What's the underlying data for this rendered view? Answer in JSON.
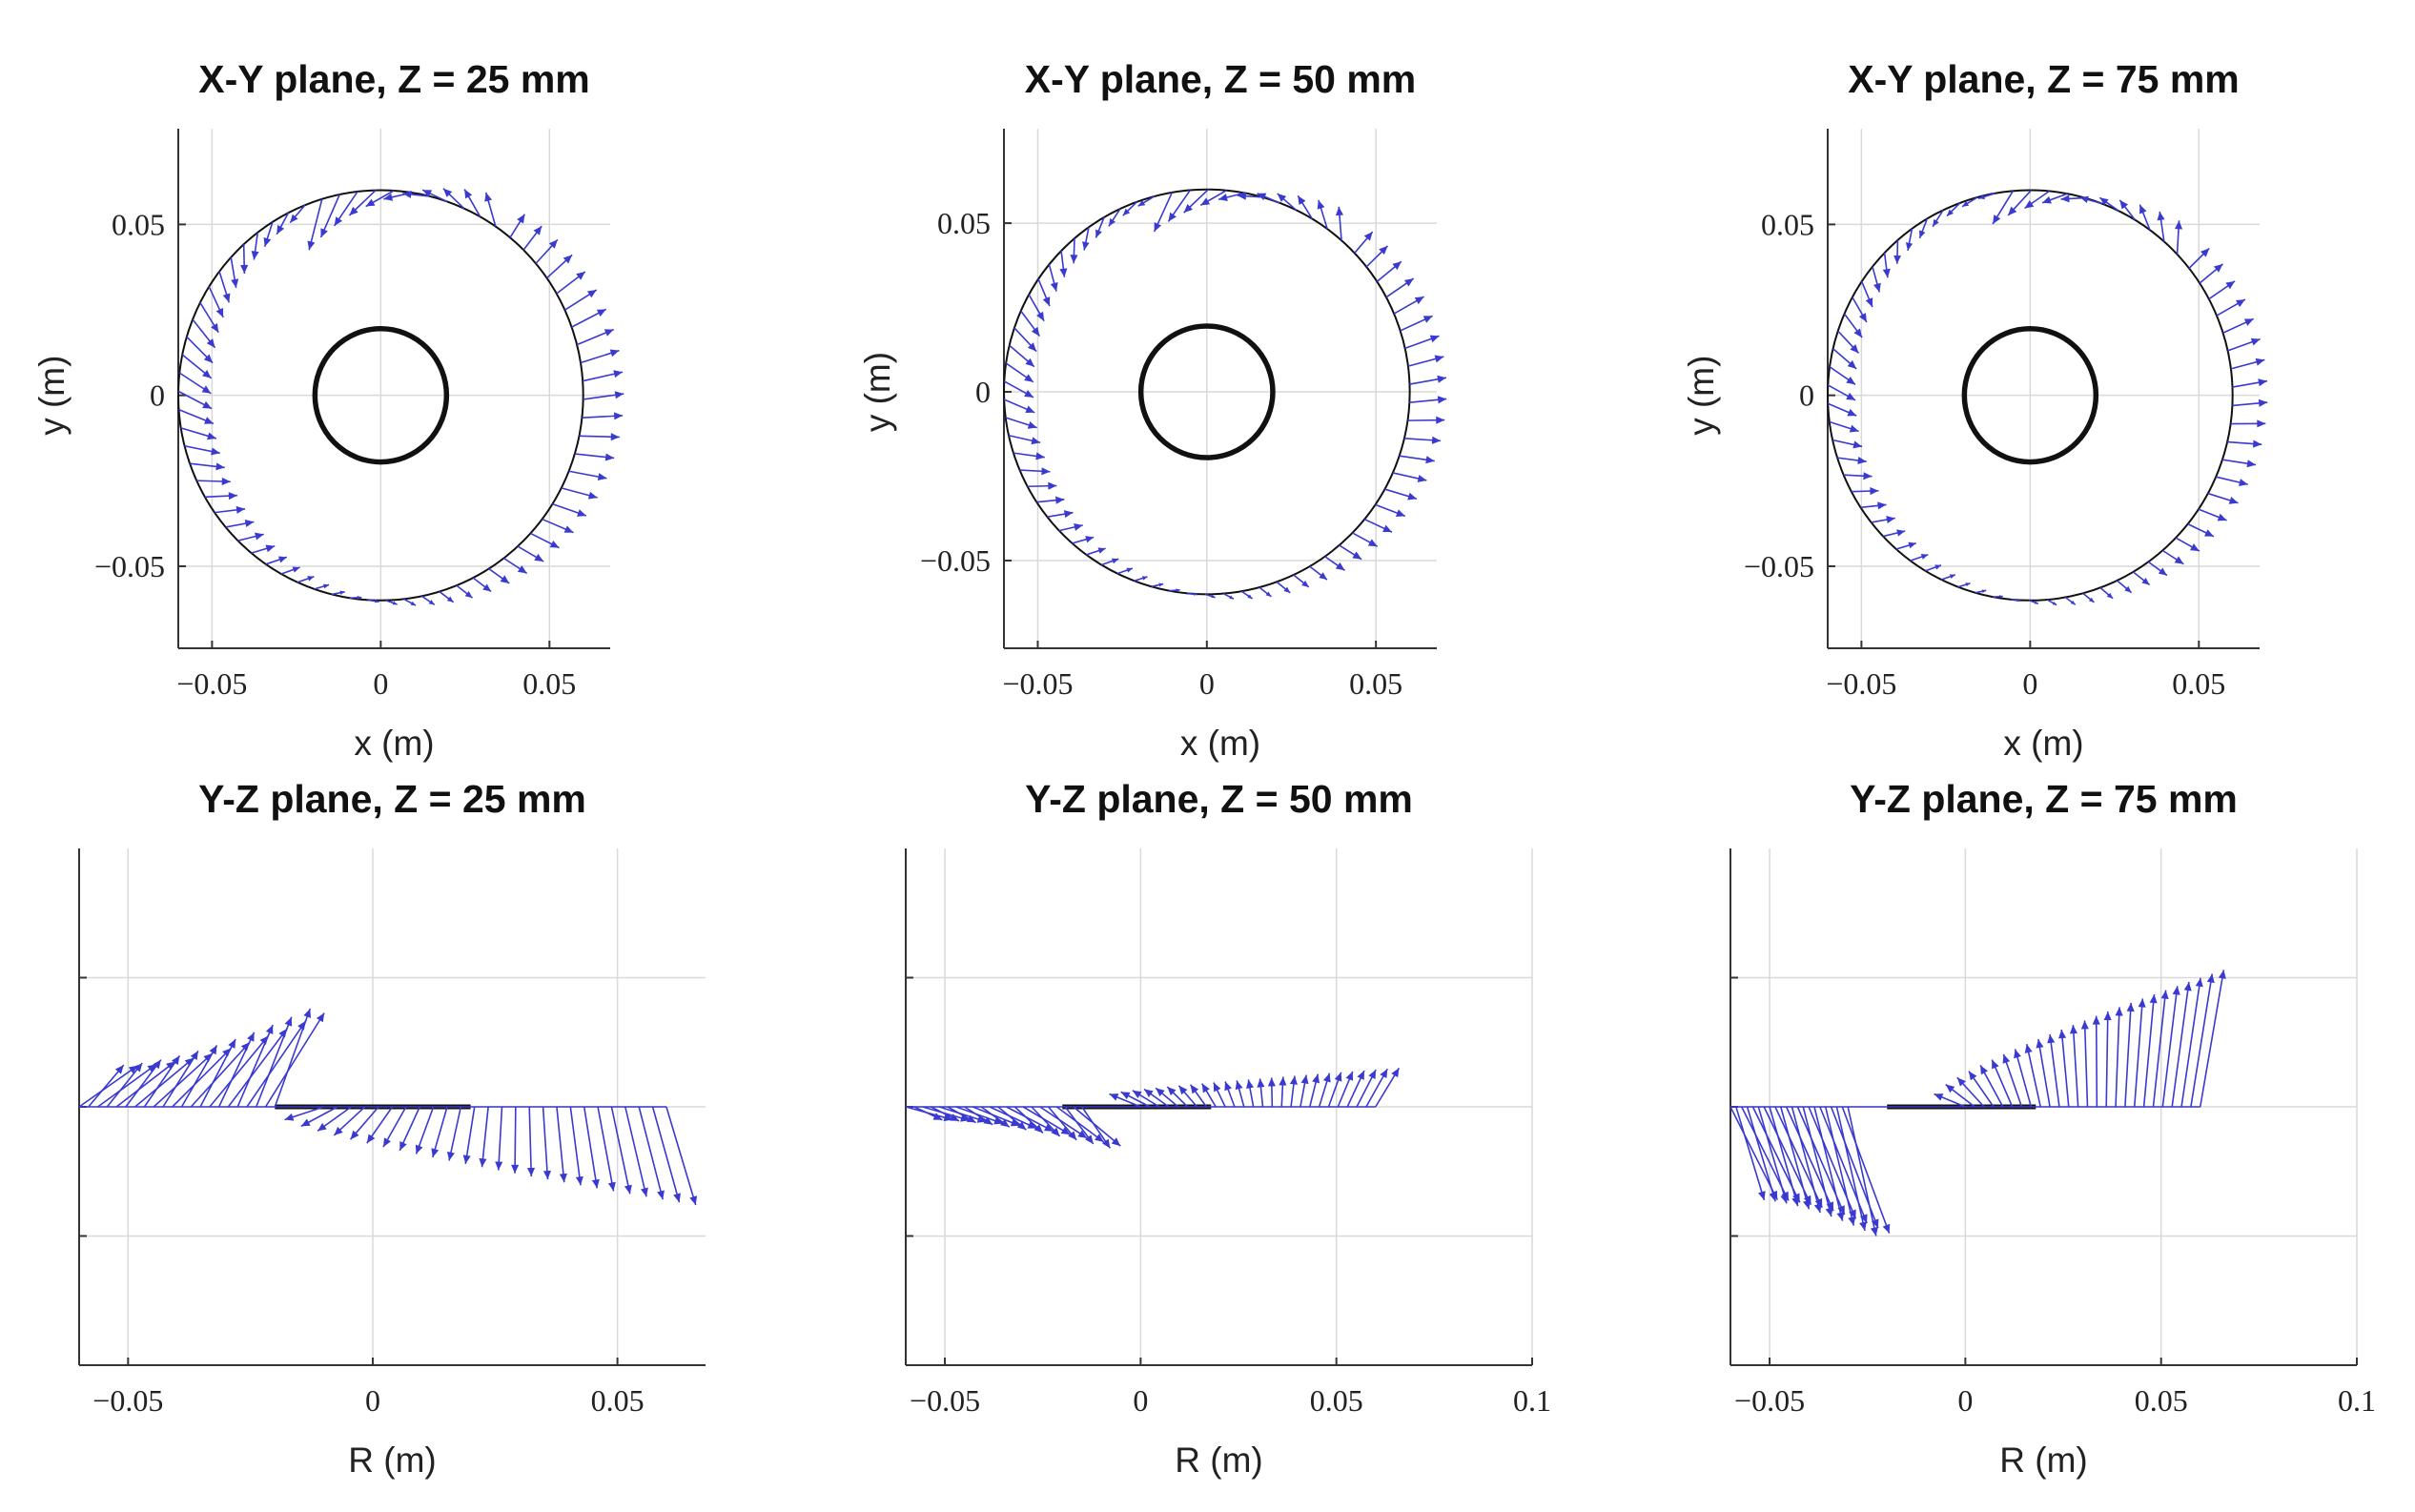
{
  "chart_data": [
    {
      "type": "quiver",
      "title": "X-Y plane, Z = 25 mm",
      "xlabel": "x (m)",
      "ylabel": "y (m)",
      "xlim": [
        -0.06,
        0.068
      ],
      "ylim": [
        -0.074,
        0.078
      ],
      "xticks": [
        -0.05,
        0,
        0.05
      ],
      "xticklabels": [
        "−0.05",
        "0",
        "0.05"
      ],
      "yticks": [
        -0.05,
        0,
        0.05
      ],
      "yticklabels": [
        "−0.05",
        "0",
        "0.05"
      ],
      "grid": true,
      "circles": [
        {
          "center": [
            0,
            0
          ],
          "r": 0.06,
          "style": "thin"
        },
        {
          "center": [
            0,
            0
          ],
          "r": 0.0195,
          "style": "thick"
        }
      ],
      "field": {
        "kind": "ring",
        "cusp_angle_deg": 112,
        "outward_side": "right",
        "strength": 1.0
      }
    },
    {
      "type": "quiver",
      "title": "X-Y plane, Z = 50 mm",
      "xlabel": "x (m)",
      "ylabel": "y (m)",
      "xlim": [
        -0.06,
        0.068
      ],
      "ylim": [
        -0.076,
        0.078
      ],
      "xticks": [
        -0.05,
        0,
        0.05
      ],
      "xticklabels": [
        "−0.05",
        "0",
        "0.05"
      ],
      "yticks": [
        -0.05,
        0,
        0.05
      ],
      "yticklabels": [
        "−0.05",
        "0",
        "0.05"
      ],
      "grid": true,
      "circles": [
        {
          "center": [
            0,
            0
          ],
          "r": 0.06,
          "style": "thin"
        },
        {
          "center": [
            0,
            0
          ],
          "r": 0.0195,
          "style": "thick"
        }
      ],
      "field": {
        "kind": "ring",
        "cusp_angle_deg": 105,
        "outward_side": "right",
        "strength": 0.9
      }
    },
    {
      "type": "quiver",
      "title": "X-Y plane, Z = 75 mm",
      "xlabel": "x (m)",
      "ylabel": "y (m)",
      "xlim": [
        -0.06,
        0.068
      ],
      "ylim": [
        -0.074,
        0.078
      ],
      "xticks": [
        -0.05,
        0,
        0.05
      ],
      "xticklabels": [
        "−0.05",
        "0",
        "0.05"
      ],
      "yticks": [
        -0.05,
        0,
        0.05
      ],
      "yticklabels": [
        "−0.05",
        "0",
        "0.05"
      ],
      "grid": true,
      "circles": [
        {
          "center": [
            0,
            0
          ],
          "r": 0.06,
          "style": "thin"
        },
        {
          "center": [
            0,
            0
          ],
          "r": 0.0195,
          "style": "thick"
        }
      ],
      "field": {
        "kind": "ring",
        "cusp_angle_deg": 100,
        "outward_side": "right",
        "strength": 0.85
      }
    },
    {
      "type": "quiver",
      "title": "Y-Z plane, Z = 25 mm",
      "xlabel": "R (m)",
      "ylabel": "",
      "xlim": [
        -0.06,
        0.068
      ],
      "ylim": [
        -1,
        1
      ],
      "xticks": [
        -0.05,
        0,
        0.05
      ],
      "xticklabels": [
        "−0.05",
        "0",
        "0.05"
      ],
      "yticks": [
        -0.5,
        0,
        0.5
      ],
      "yticklabels": [
        "",
        "",
        ""
      ],
      "grid": true,
      "inner_bar": [
        -0.02,
        0.02
      ],
      "field": {
        "kind": "line",
        "left": {
          "direction": "up",
          "peak_x": -0.02,
          "peak": 0.38,
          "edge": 0.16
        },
        "right": {
          "direction": "down",
          "start_x": -0.01,
          "edge": 0.33
        }
      }
    },
    {
      "type": "quiver",
      "title": "Y-Z plane, Z = 50 mm",
      "xlabel": "R (m)",
      "ylabel": "",
      "xlim": [
        -0.06,
        0.1
      ],
      "ylim": [
        -1,
        1
      ],
      "xticks": [
        -0.05,
        0,
        0.05,
        0.1
      ],
      "xticklabels": [
        "−0.05",
        "0",
        "0.05",
        "0.1"
      ],
      "yticks": [
        -0.5,
        0,
        0.5
      ],
      "yticklabels": [
        "",
        "",
        ""
      ],
      "grid": true,
      "inner_bar": [
        -0.02,
        0.018
      ],
      "field": {
        "kind": "line",
        "left": {
          "direction": "down",
          "peak_x": -0.015,
          "peak": 0.16,
          "edge": 0.05
        },
        "right": {
          "direction": "up",
          "start_x": 0.0,
          "edge": 0.1
        }
      }
    },
    {
      "type": "quiver",
      "title": "Y-Z plane, Z = 75 mm",
      "xlabel": "R (m)",
      "ylabel": "",
      "xlim": [
        -0.06,
        0.1
      ],
      "ylim": [
        -1,
        1
      ],
      "xticks": [
        -0.05,
        0,
        0.05,
        0.1
      ],
      "xticklabels": [
        "−0.05",
        "0",
        "0.05",
        "0.1"
      ],
      "yticks": [
        -0.5,
        0,
        0.5
      ],
      "yticklabels": [
        "",
        "",
        ""
      ],
      "grid": true,
      "inner_bar": [
        -0.02,
        0.018
      ],
      "field": {
        "kind": "line",
        "left": {
          "direction": "down",
          "peak_x": -0.03,
          "peak": 0.5,
          "edge": 0.36
        },
        "right": {
          "direction": "up",
          "start_x": 0.0,
          "edge": 0.48
        }
      }
    }
  ]
}
